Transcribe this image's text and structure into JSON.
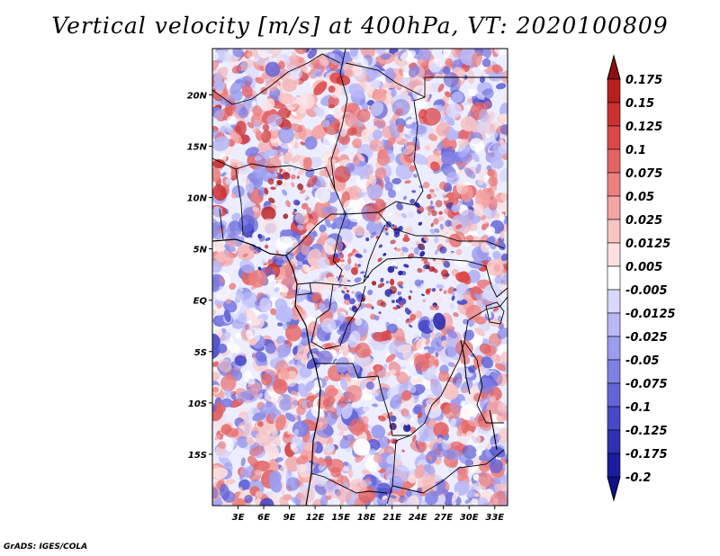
{
  "title": "Vertical velocity [m/s] at 400hPa, VT: 2020100809",
  "credit": "GrADS: IGES/COLA",
  "map": {
    "lat_range": [
      -20,
      24.5
    ],
    "lon_range": [
      0,
      34.5
    ],
    "lat_ticks": [
      {
        "value": 20,
        "label": "20N"
      },
      {
        "value": 15,
        "label": "15N"
      },
      {
        "value": 10,
        "label": "10N"
      },
      {
        "value": 5,
        "label": "5N"
      },
      {
        "value": 0,
        "label": "EQ"
      },
      {
        "value": -5,
        "label": "5S"
      },
      {
        "value": -10,
        "label": "10S"
      },
      {
        "value": -15,
        "label": "15S"
      }
    ],
    "lon_ticks": [
      {
        "value": 3,
        "label": "3E"
      },
      {
        "value": 6,
        "label": "6E"
      },
      {
        "value": 9,
        "label": "9E"
      },
      {
        "value": 12,
        "label": "12E"
      },
      {
        "value": 15,
        "label": "15E"
      },
      {
        "value": 18,
        "label": "18E"
      },
      {
        "value": 21,
        "label": "21E"
      },
      {
        "value": 24,
        "label": "24E"
      },
      {
        "value": 27,
        "label": "27E"
      },
      {
        "value": 30,
        "label": "30E"
      },
      {
        "value": 33,
        "label": "33E"
      }
    ]
  },
  "colorbar": {
    "levels": [
      {
        "label": "0.175",
        "color": "#a01818"
      },
      {
        "label": "0.15",
        "color": "#b82020"
      },
      {
        "label": "0.125",
        "color": "#cc3030"
      },
      {
        "label": "0.1",
        "color": "#dc4848"
      },
      {
        "label": "0.075",
        "color": "#e46464"
      },
      {
        "label": "0.05",
        "color": "#ec8080"
      },
      {
        "label": "0.025",
        "color": "#f4a4a4"
      },
      {
        "label": "0.0125",
        "color": "#f8c4c4"
      },
      {
        "label": "0.005",
        "color": "#fce0e0"
      },
      {
        "label": "-0.005",
        "color": "#ffffff"
      },
      {
        "label": "-0.0125",
        "color": "#d8d8fc"
      },
      {
        "label": "-0.025",
        "color": "#b8b8f8"
      },
      {
        "label": "-0.05",
        "color": "#9c9cf0"
      },
      {
        "label": "-0.075",
        "color": "#8080e4"
      },
      {
        "label": "-0.1",
        "color": "#6464d8"
      },
      {
        "label": "-0.125",
        "color": "#4848c8"
      },
      {
        "label": "-0.175",
        "color": "#3030b4"
      },
      {
        "label": "-0.2",
        "color": "#1c1ca0"
      }
    ],
    "top_cap_color": "#8c1010",
    "bottom_cap_color": "#10108c"
  }
}
